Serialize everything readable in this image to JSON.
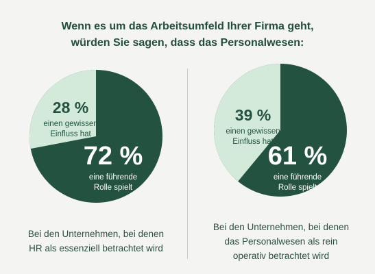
{
  "title_lines": [
    "Wenn es um das Arbeitsumfeld Ihrer Firma geht,",
    "würden Sie sagen, dass das Personalwesen:"
  ],
  "colors": {
    "dark_green": "#245241",
    "light_green": "#d3eadb",
    "text": "#2b4f43"
  },
  "chart_data": [
    {
      "type": "pie",
      "slices": [
        {
          "label": "einen gewissen Einfluss hat",
          "value": 28,
          "value_text": "28 %",
          "lines": [
            "einen gewissen",
            "Einfluss hat"
          ],
          "color": "#d3eadb"
        },
        {
          "label": "eine führende Rolle spielt",
          "value": 72,
          "value_text": "72 %",
          "lines": [
            "eine führende",
            "Rolle spielt"
          ],
          "color": "#245241"
        }
      ],
      "caption_lines": [
        "Bei den Unternehmen, bei denen",
        "HR als essenziell betrachtet wird"
      ]
    },
    {
      "type": "pie",
      "slices": [
        {
          "label": "einen gewissen Einfluss hat",
          "value": 39,
          "value_text": "39 %",
          "lines": [
            "einen gewissen",
            "Einfluss hat"
          ],
          "color": "#d3eadb"
        },
        {
          "label": "eine führende Rolle spielt",
          "value": 61,
          "value_text": "61 %",
          "lines": [
            "eine führende",
            "Rolle spielt"
          ],
          "color": "#245241"
        }
      ],
      "caption_lines": [
        "Bei den Unternehmen, bei denen",
        "das Personalwesen als rein",
        "operativ betrachtet wird"
      ]
    }
  ]
}
